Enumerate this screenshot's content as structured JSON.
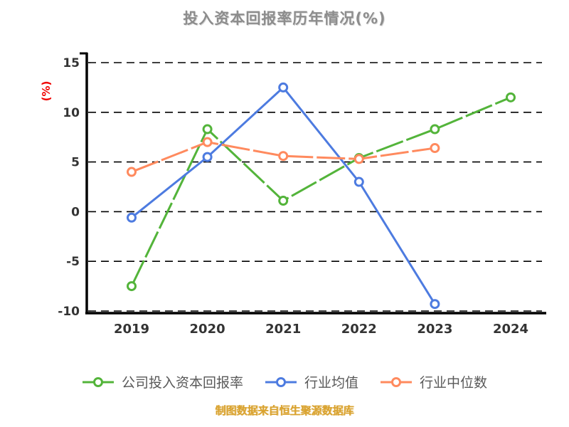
{
  "chart_data": {
    "type": "line",
    "title": "投入资本回报率历年情况(%)",
    "ylabel": "(%)",
    "xlabel": "",
    "categories": [
      "2019",
      "2020",
      "2021",
      "2022",
      "2023",
      "2024"
    ],
    "ylim": [
      -10,
      15
    ],
    "yticks": [
      15,
      10,
      5,
      0,
      -5,
      -10
    ],
    "grid": "horizontal-dashed",
    "legend_position": "bottom",
    "series": [
      {
        "name": "公司投入资本回报率",
        "color": "#53b43a",
        "dash": "40 5",
        "values": [
          -7.5,
          8.3,
          1.1,
          5.4,
          8.3,
          11.5
        ]
      },
      {
        "name": "行业均值",
        "color": "#4d7be0",
        "dash": null,
        "values": [
          -0.6,
          5.5,
          12.5,
          3.0,
          -9.3,
          null
        ]
      },
      {
        "name": "行业中位数",
        "color": "#ff8a5e",
        "dash": "40 5",
        "values": [
          4.0,
          7.0,
          5.6,
          5.3,
          6.4,
          null
        ]
      }
    ],
    "footnote": "制图数据来自恒生聚源数据库",
    "colors": {
      "axis": "#000000",
      "grid": "#000000",
      "tick_label": "#333333",
      "title": "#8d8d8d",
      "ylabel": "#f00200",
      "legend_label": "#595959",
      "footnote": "#d9a22e",
      "background": "#ffffff"
    }
  }
}
